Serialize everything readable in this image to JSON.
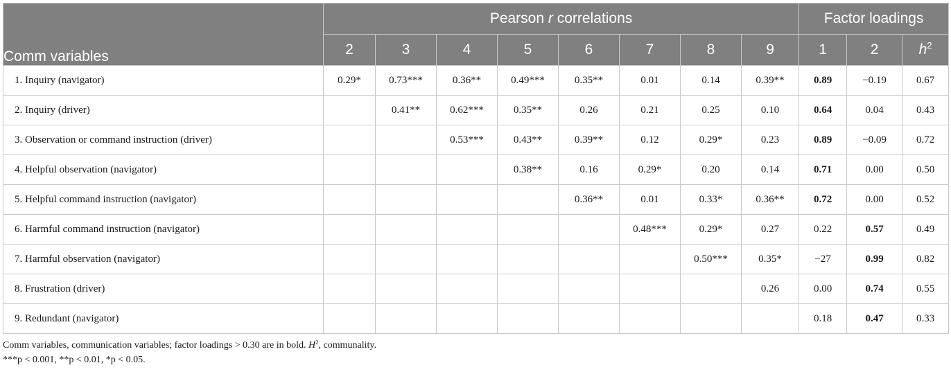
{
  "table": {
    "row_header": "Comm variables",
    "pearson_group": {
      "before": "Pearson ",
      "italic": "r",
      "after": " correlations"
    },
    "factor_group": "Factor loadings",
    "pearson_cols": [
      "2",
      "3",
      "4",
      "5",
      "6",
      "7",
      "8",
      "9"
    ],
    "factor_cols": [
      "1",
      "2"
    ],
    "h2_col": {
      "base": "h",
      "sup": "2"
    },
    "rows": [
      {
        "label": "1.  Inquiry (navigator)",
        "cells": [
          "0.29*",
          "0.73***",
          "0.36**",
          "0.49***",
          "0.35**",
          "0.01",
          "0.14",
          "0.39**"
        ],
        "f1": "0.89",
        "f2": "−0.19",
        "f1_bold": true,
        "f2_bold": false,
        "h2": "0.67"
      },
      {
        "label": "2.  Inquiry (driver)",
        "cells": [
          "",
          "0.41**",
          "0.62***",
          "0.35**",
          "0.26",
          "0.21",
          "0.25",
          "0.10"
        ],
        "f1": "0.64",
        "f2": "0.04",
        "f1_bold": true,
        "f2_bold": false,
        "h2": "0.43"
      },
      {
        "label": "3.  Observation or command instruction (driver)",
        "cells": [
          "",
          "",
          "0.53***",
          "0.43**",
          "0.39**",
          "0.12",
          "0.29*",
          "0.23"
        ],
        "f1": "0.89",
        "f2": "−0.09",
        "f1_bold": true,
        "f2_bold": false,
        "h2": "0.72"
      },
      {
        "label": "4.  Helpful observation (navigator)",
        "cells": [
          "",
          "",
          "",
          "0.38**",
          "0.16",
          "0.29*",
          "0.20",
          "0.14"
        ],
        "f1": "0.71",
        "f2": "0.00",
        "f1_bold": true,
        "f2_bold": false,
        "h2": "0.50"
      },
      {
        "label": "5.  Helpful command instruction (navigator)",
        "cells": [
          "",
          "",
          "",
          "",
          "0.36**",
          "0.01",
          "0.33*",
          "0.36**"
        ],
        "f1": "0.72",
        "f2": "0.00",
        "f1_bold": true,
        "f2_bold": false,
        "h2": "0.52"
      },
      {
        "label": "6.  Harmful command instruction (navigator)",
        "cells": [
          "",
          "",
          "",
          "",
          "",
          "0.48***",
          "0.29*",
          "0.27"
        ],
        "f1": "0.22",
        "f2": "0.57",
        "f1_bold": false,
        "f2_bold": true,
        "h2": "0.49"
      },
      {
        "label": "7.  Harmful observation (navigator)",
        "cells": [
          "",
          "",
          "",
          "",
          "",
          "",
          "0.50***",
          "0.35*"
        ],
        "f1": "−27",
        "f2": "0.99",
        "f1_bold": false,
        "f2_bold": true,
        "h2": "0.82"
      },
      {
        "label": "8.  Frustration (driver)",
        "cells": [
          "",
          "",
          "",
          "",
          "",
          "",
          "",
          "0.26"
        ],
        "f1": "0.00",
        "f2": "0.74",
        "f1_bold": false,
        "f2_bold": true,
        "h2": "0.55"
      },
      {
        "label": "9.  Redundant (navigator)",
        "cells": [
          "",
          "",
          "",
          "",
          "",
          "",
          "",
          ""
        ],
        "f1": "0.18",
        "f2": "0.47",
        "f1_bold": false,
        "f2_bold": true,
        "h2": "0.33"
      }
    ]
  },
  "notes": {
    "line1_a": "Comm variables, communication variables; factor loadings > 0.30 are in bold. ",
    "line1_h": "H",
    "line1_sup": "2",
    "line1_b": ", communality.",
    "line2": "***p < 0.001, **p < 0.01, *p < 0.05."
  }
}
